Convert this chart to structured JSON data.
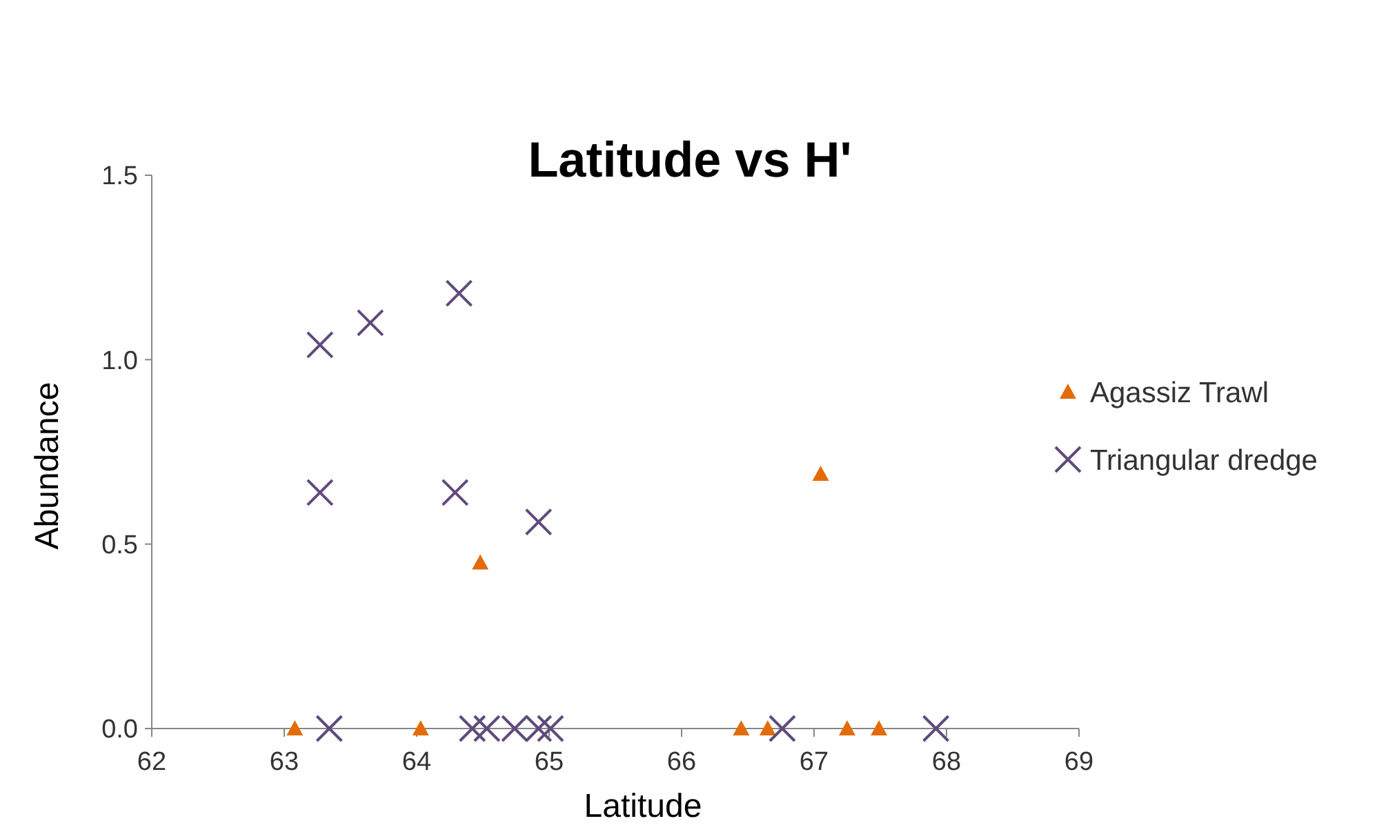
{
  "chart_data": {
    "type": "scatter",
    "title": "Latitude vs H'",
    "xlabel": "Latitude",
    "ylabel": "Abundance",
    "xlim": [
      62,
      69
    ],
    "xticks": [
      62,
      63,
      64,
      65,
      66,
      67,
      68,
      69
    ],
    "ylim": [
      0,
      1.5
    ],
    "yticks": [
      {
        "value": 0,
        "label": "0.0"
      },
      {
        "value": 0.5,
        "label": "0.5"
      },
      {
        "value": 1,
        "label": "1.0"
      },
      {
        "value": 1.5,
        "label": "1.5"
      }
    ],
    "grid": false,
    "legend": "right",
    "series": [
      {
        "name": "Agassiz Trawl",
        "color": "#e36c09",
        "marker": "triangle",
        "x": [
          63.08,
          64.03,
          64.48,
          66.45,
          66.65,
          67.05,
          67.25,
          67.49
        ],
        "values": [
          0,
          0,
          0.45,
          0,
          0,
          0.69,
          0,
          0
        ]
      },
      {
        "name": "Triangular dredge",
        "color": "#604a7b",
        "marker": "cross",
        "x": [
          63.27,
          63.65,
          64.32,
          63.27,
          64.29,
          64.92,
          63.34,
          64.42,
          64.53,
          64.74,
          64.92,
          65.01,
          66.76,
          67.92
        ],
        "values": [
          1.04,
          1.1,
          1.18,
          0.64,
          0.64,
          0.56,
          0,
          0,
          0,
          0,
          0,
          0,
          0,
          0
        ]
      }
    ]
  }
}
